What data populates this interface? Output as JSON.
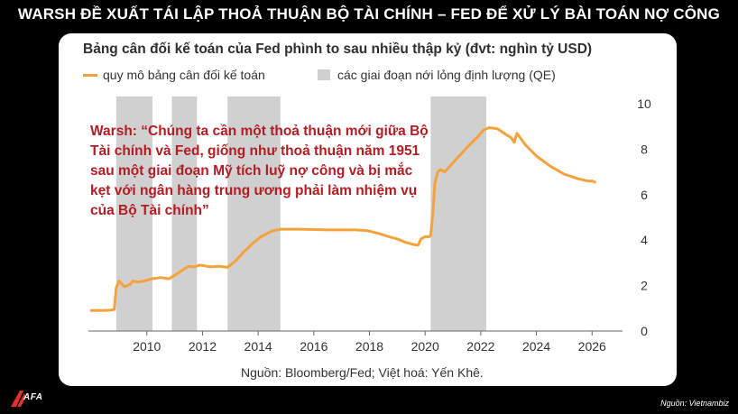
{
  "headline": "WARSH ĐỀ XUẤT TÁI LẬP THOẢ THUẬN BỘ TÀI CHÍNH – FED ĐỂ XỬ LÝ BÀI TOÁN NỢ CÔNG",
  "credit": "Nguồn: Vietnambiz",
  "logo_text": "AFA",
  "chart_data": {
    "type": "line",
    "title": "Bảng cân đối kế toán của Fed phình to sau nhiều thập kỷ (đvt: nghìn tỷ USD)",
    "legend": [
      "quy mô bảng cân đối kế toán",
      "các giai đoạn nới lỏng định lượng (QE)"
    ],
    "legend_position": "top",
    "source": "Nguồn: Bloomberg/Fed; Việt hoá: Yến Khê.",
    "quote": "Warsh: “Chúng ta cần một thoả thuận mới giữa Bộ Tài chính và Fed, giống như thoả thuận năm 1951 sau một giai đoạn Mỹ tích luỹ nợ công và bị mắc kẹt với ngân hàng trung ương phải làm nhiệm vụ của Bộ Tài chính”",
    "xlim": [
      2007.9,
      2026.9
    ],
    "ylim": [
      0,
      10
    ],
    "x_ticks": [
      "2010",
      "2012",
      "2014",
      "2016",
      "2018",
      "2020",
      "2022",
      "2024",
      "2026"
    ],
    "y_ticks": [
      "0",
      "2",
      "4",
      "6",
      "8",
      "10"
    ],
    "y_axis_side": "right",
    "grid": false,
    "qe_periods": [
      [
        2008.9,
        2010.2
      ],
      [
        2010.9,
        2011.8
      ],
      [
        2012.9,
        2014.8
      ],
      [
        2020.2,
        2022.2
      ]
    ],
    "series": [
      {
        "color": "#f5a23c",
        "x": [
          2008.0,
          2008.5,
          2008.7,
          2008.83,
          2008.9,
          2009.0,
          2009.2,
          2009.4,
          2009.5,
          2009.7,
          2009.9,
          2010.2,
          2010.5,
          2010.8,
          2011.0,
          2011.3,
          2011.5,
          2011.7,
          2011.9,
          2012.3,
          2012.6,
          2012.9,
          2013.2,
          2013.5,
          2013.8,
          2014.1,
          2014.5,
          2014.8,
          2015.5,
          2016.5,
          2017.5,
          2017.9,
          2018.3,
          2018.7,
          2019.0,
          2019.3,
          2019.6,
          2019.75,
          2019.85,
          2020.0,
          2020.15,
          2020.2,
          2020.28,
          2020.35,
          2020.45,
          2020.55,
          2020.7,
          2021.0,
          2021.3,
          2021.6,
          2021.9,
          2022.1,
          2022.3,
          2022.6,
          2022.9,
          2023.1,
          2023.2,
          2023.3,
          2023.6,
          2024.0,
          2024.5,
          2025.0,
          2025.5,
          2025.85,
          2026.0,
          2026.1
        ],
        "y": [
          0.9,
          0.9,
          0.92,
          0.95,
          1.9,
          2.2,
          1.95,
          2.05,
          2.2,
          2.15,
          2.2,
          2.3,
          2.35,
          2.3,
          2.45,
          2.7,
          2.85,
          2.82,
          2.9,
          2.82,
          2.85,
          2.8,
          3.1,
          3.5,
          3.85,
          4.15,
          4.4,
          4.48,
          4.48,
          4.45,
          4.45,
          4.42,
          4.3,
          4.15,
          4.05,
          3.9,
          3.8,
          3.78,
          4.05,
          4.15,
          4.15,
          4.2,
          5.2,
          6.5,
          7.0,
          7.1,
          7.0,
          7.4,
          7.8,
          8.2,
          8.55,
          8.85,
          8.95,
          8.9,
          8.65,
          8.5,
          8.3,
          8.7,
          8.2,
          7.7,
          7.25,
          6.9,
          6.7,
          6.6,
          6.6,
          6.55
        ]
      }
    ]
  }
}
